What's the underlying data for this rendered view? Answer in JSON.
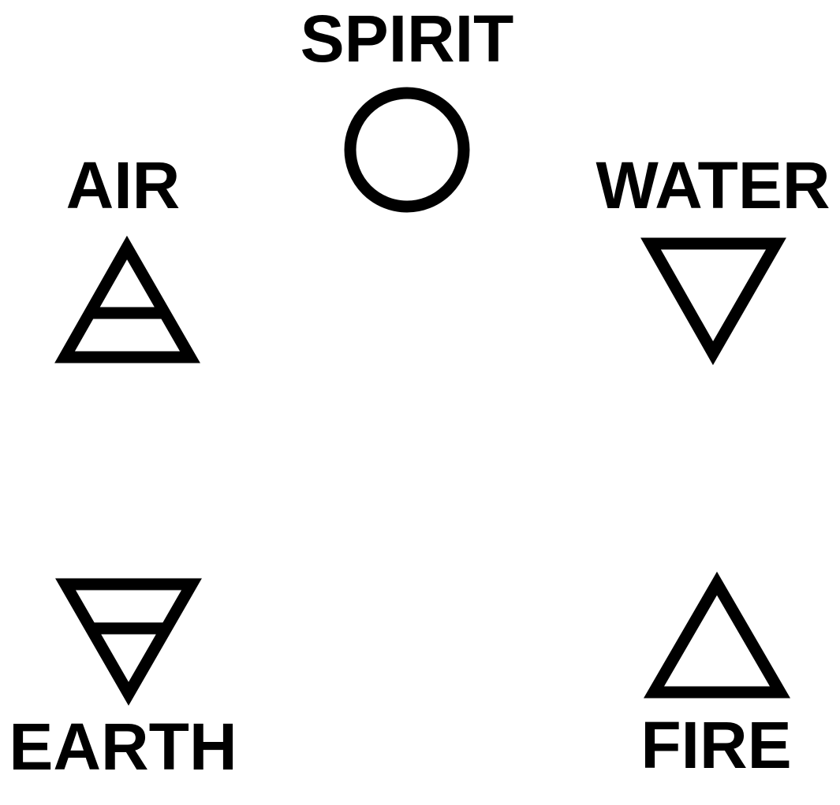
{
  "elements": {
    "spirit": {
      "label": "SPIRIT",
      "symbol": "circle-icon"
    },
    "air": {
      "label": "AIR",
      "symbol": "upward-triangle-with-bar-icon"
    },
    "water": {
      "label": "WATER",
      "symbol": "downward-triangle-icon"
    },
    "earth": {
      "label": "EARTH",
      "symbol": "downward-triangle-with-bar-icon"
    },
    "fire": {
      "label": "FIRE",
      "symbol": "upward-triangle-icon"
    }
  },
  "colors": {
    "ink": "#000000",
    "background": "#ffffff"
  }
}
